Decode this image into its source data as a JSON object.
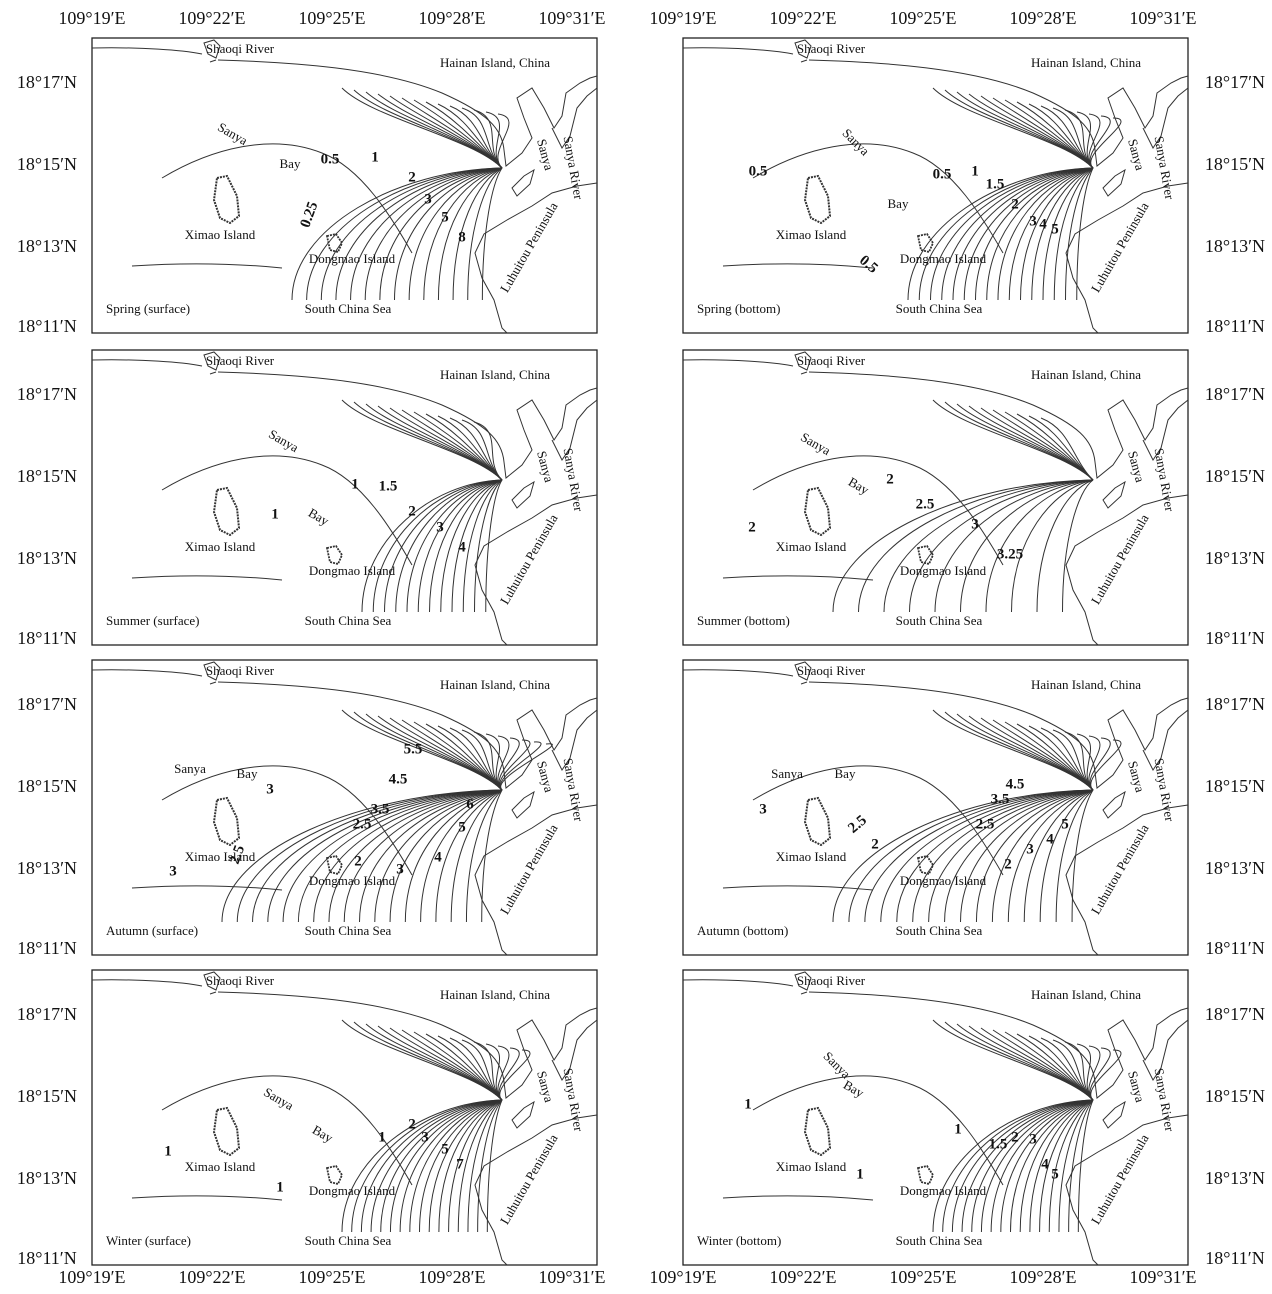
{
  "axes": {
    "longitude_labels": [
      "109°19′E",
      "109°22′E",
      "109°25′E",
      "109°28′E",
      "109°31′E"
    ],
    "latitude_labels": [
      "18°17′N",
      "18°15′N",
      "18°13′N",
      "18°11′N"
    ]
  },
  "place_names": [
    "Shaoqi River",
    "Hainan Island, China",
    "Sanya",
    "Bay",
    "Ximao Island",
    "Dongmao Island",
    "South China Sea",
    "Sanya",
    "Sanya River",
    "Luhuitou Peninsula"
  ],
  "panels": [
    {
      "label": "Spring (surface)",
      "contour_labels": [
        0.5,
        1,
        2,
        3,
        5,
        8,
        0.25
      ]
    },
    {
      "label": "Spring (bottom)",
      "contour_labels": [
        0.5,
        0.5,
        1,
        1.5,
        2,
        3,
        4,
        5,
        0.5
      ]
    },
    {
      "label": "Summer (surface)",
      "contour_labels": [
        1,
        1,
        1.5,
        2,
        3,
        4
      ]
    },
    {
      "label": "Summer (bottom)",
      "contour_labels": [
        2,
        2,
        2.5,
        3,
        3.25
      ]
    },
    {
      "label": "Autumn (surface)",
      "contour_labels": [
        3,
        3,
        2.5,
        2.5,
        3.5,
        4.5,
        5.5,
        6,
        5,
        4,
        3,
        2
      ]
    },
    {
      "label": "Autumn (bottom)",
      "contour_labels": [
        3,
        2.5,
        2,
        2,
        2.5,
        3.5,
        4.5,
        3,
        4,
        5
      ]
    },
    {
      "label": "Winter (surface)",
      "contour_labels": [
        1,
        1,
        1,
        2,
        3,
        5,
        7
      ]
    },
    {
      "label": "Winter (bottom)",
      "contour_labels": [
        1,
        1,
        1,
        1.5,
        2,
        3,
        4,
        5
      ]
    }
  ]
}
